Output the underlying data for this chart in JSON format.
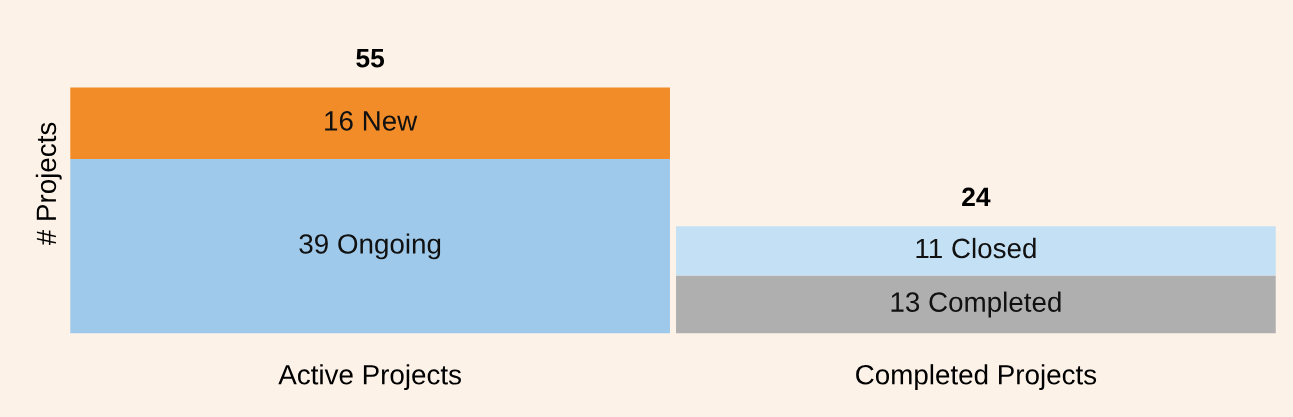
{
  "chart_data": {
    "type": "bar",
    "stacked": true,
    "ylabel": "# Projects",
    "categories": [
      "Active Projects",
      "Completed Projects"
    ],
    "series": [
      {
        "color": "#9fc9ea",
        "values": [
          39,
          null
        ],
        "value_labels": [
          "39 Ongoing",
          null
        ]
      },
      {
        "color": "#f28c28",
        "values": [
          16,
          null
        ],
        "value_labels": [
          "16 New",
          null
        ]
      },
      {
        "color": "#b0afb0",
        "values": [
          null,
          13
        ],
        "value_labels": [
          null,
          "13 Completed"
        ]
      },
      {
        "color": "#c4e0f5",
        "values": [
          null,
          11
        ],
        "value_labels": [
          null,
          "11 Closed"
        ]
      }
    ],
    "totals": [
      "55",
      "24"
    ],
    "grid": false,
    "legend": false
  }
}
